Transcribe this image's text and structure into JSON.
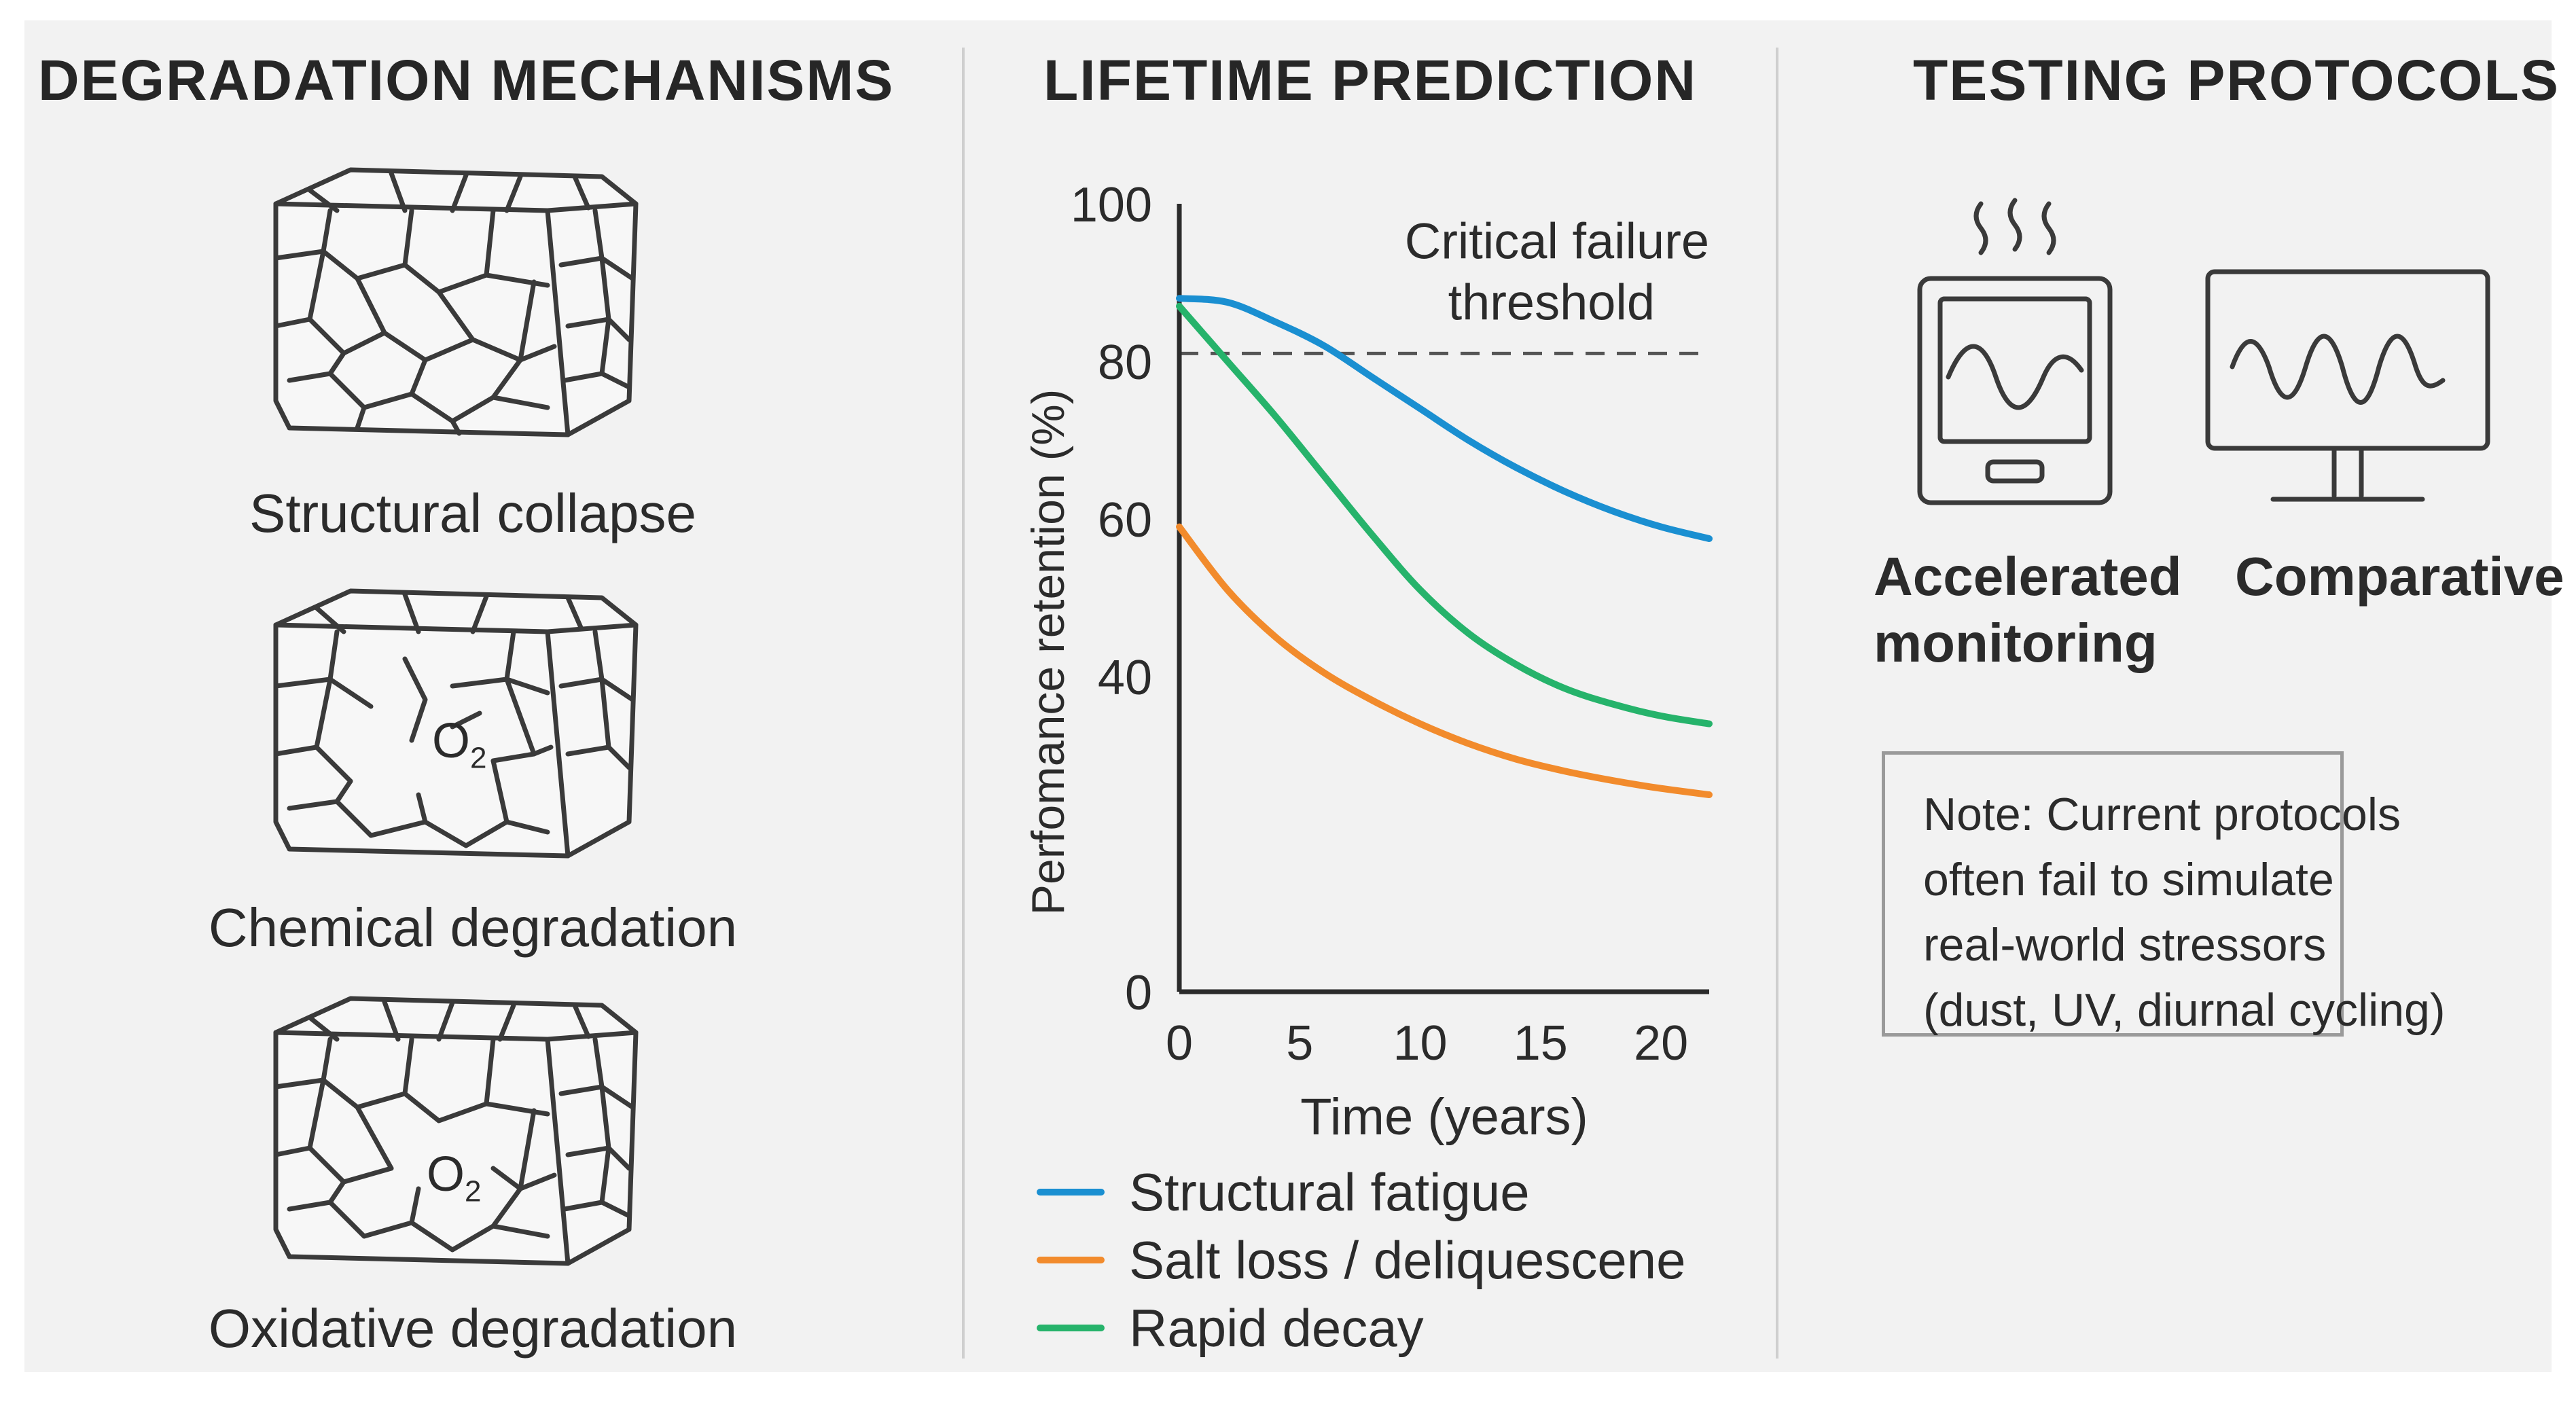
{
  "colors": {
    "background": "#f2f2f2",
    "structural_fatigue": "#1a8fd1",
    "salt_loss": "#f28b2c",
    "rapid_decay": "#26b36b",
    "ink": "#2b2b2b"
  },
  "mechanisms": {
    "heading": "DEGRADATION MECHANISMS",
    "items": [
      {
        "label": "Structural collapse",
        "icon": "cracked-cube-icon"
      },
      {
        "label": "Chemical degradation",
        "icon": "cracked-cube-o2-icon",
        "symbol": "O",
        "subscript": "2"
      },
      {
        "label": "Oxidative degradation",
        "icon": "cracked-cube-o2-icon",
        "symbol": "O",
        "subscript": "2"
      }
    ]
  },
  "prediction": {
    "heading": "LIFETIME PREDICTION",
    "threshold_label_line1": "Critical failure",
    "threshold_label_line2": "threshold"
  },
  "chart_data": {
    "type": "line",
    "title": "LIFETIME PREDICTION",
    "xlabel": "Time (years)",
    "ylabel": "Perfomance retention (%)",
    "xlim": [
      0,
      22
    ],
    "ylim": [
      0,
      100
    ],
    "x_ticks": [
      0,
      5,
      10,
      15,
      20
    ],
    "y_ticks": [
      0,
      40,
      60,
      80,
      100
    ],
    "threshold": {
      "y": 81,
      "label": "Critical failure threshold",
      "style": "dashed"
    },
    "legend_position": "bottom",
    "series": [
      {
        "name": "Structural fatigue",
        "color": "#1a8fd1",
        "x": [
          0,
          2,
          4,
          6,
          8,
          10,
          12,
          14,
          16,
          18,
          20,
          22
        ],
        "y": [
          88,
          87.5,
          85,
          82,
          78,
          74,
          70,
          66.5,
          63.5,
          61,
          59,
          57.5
        ]
      },
      {
        "name": "Salt loss / deliquescene",
        "color": "#f28b2c",
        "x": [
          0,
          2,
          4,
          6,
          8,
          10,
          12,
          14,
          16,
          18,
          20,
          22
        ],
        "y": [
          59,
          51,
          45,
          40.5,
          37,
          34,
          31.5,
          29.5,
          28,
          26.8,
          25.8,
          25
        ]
      },
      {
        "name": "Rapid decay",
        "color": "#26b36b",
        "x": [
          0,
          2,
          4,
          6,
          8,
          10,
          12,
          14,
          16,
          18,
          20,
          22
        ],
        "y": [
          87,
          80,
          73,
          65.5,
          58,
          51,
          45.5,
          41.5,
          38.5,
          36.5,
          35,
          34
        ]
      }
    ]
  },
  "protocols": {
    "heading": "TESTING PROTOCOLS",
    "device1_label_line1": "Accelerated",
    "device1_label_line2": "monitoring",
    "device2_label": "Comparative",
    "note_lines": [
      "Note: Current protocols",
      "often fail to simulate",
      "real-world stressors",
      "(dust, UV, diurnal cycling)"
    ]
  }
}
